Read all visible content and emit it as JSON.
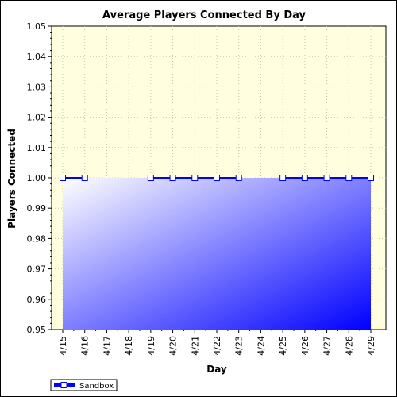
{
  "chart_data": {
    "type": "area",
    "title": "Average Players Connected By Day",
    "xlabel": "Day",
    "ylabel": "Players Connected",
    "ylim": [
      0.95,
      1.05
    ],
    "yticks": [
      "0.95",
      "0.96",
      "0.97",
      "0.98",
      "0.99",
      "1.00",
      "1.01",
      "1.02",
      "1.03",
      "1.04",
      "1.05"
    ],
    "categories": [
      "4/15",
      "4/16",
      "4/17",
      "4/18",
      "4/19",
      "4/20",
      "4/21",
      "4/22",
      "4/23",
      "4/24",
      "4/25",
      "4/26",
      "4/27",
      "4/28",
      "4/29"
    ],
    "series": [
      {
        "name": "Sandbox",
        "values": [
          1.0,
          1.0,
          null,
          null,
          1.0,
          1.0,
          1.0,
          1.0,
          1.0,
          null,
          1.0,
          1.0,
          1.0,
          1.0,
          1.0
        ]
      }
    ],
    "grid": true,
    "legend": "bottom-left",
    "colors": {
      "plot_background": "#ffffe0",
      "line": "#0000ff",
      "fill_start": "#ffffff",
      "fill_end": "#0000ff"
    }
  }
}
